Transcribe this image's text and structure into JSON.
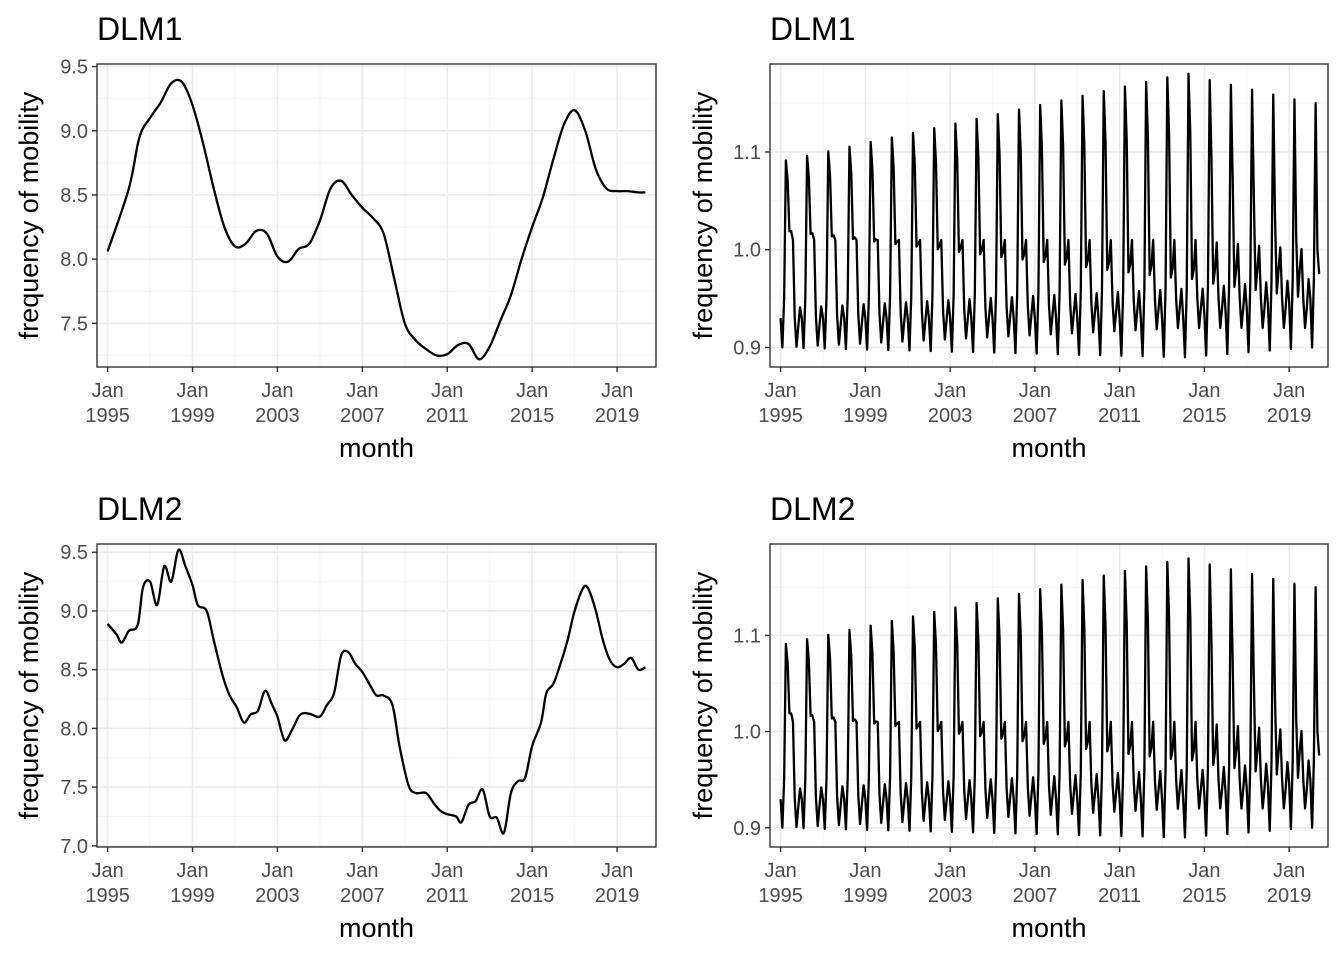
{
  "chart_data": [
    {
      "type": "line",
      "title": "DLM1",
      "xlabel": "month",
      "ylabel": "frequency of mobility",
      "xlim": [
        "1994-07",
        "2020-11"
      ],
      "ylim": [
        7.16,
        9.52
      ],
      "yticks": [
        7.5,
        8.0,
        8.5,
        9.0,
        9.5
      ],
      "ytick_labels": [
        "7.5",
        "8.0",
        "8.5",
        "9.0",
        "9.5"
      ],
      "xticks": [
        "1995-01",
        "1999-01",
        "2003-01",
        "2007-01",
        "2011-01",
        "2015-01",
        "2019-01"
      ],
      "xtick_labels": [
        "Jan\n1995",
        "Jan\n1999",
        "Jan\n2003",
        "Jan\n2007",
        "Jan\n2011",
        "Jan\n2015",
        "Jan\n2019"
      ],
      "grid": true,
      "series": [
        {
          "kind": "smooth",
          "x": [
            "1995-01",
            "1996-01",
            "1996-07",
            "1997-01",
            "1997-07",
            "1998-01",
            "1998-07",
            "1999-01",
            "1999-07",
            "2000-01",
            "2000-07",
            "2001-01",
            "2001-07",
            "2002-01",
            "2002-07",
            "2003-01",
            "2003-07",
            "2004-01",
            "2004-07",
            "2005-01",
            "2005-07",
            "2006-01",
            "2006-07",
            "2007-01",
            "2007-07",
            "2008-01",
            "2008-07",
            "2009-01",
            "2009-07",
            "2010-01",
            "2010-07",
            "2011-01",
            "2011-07",
            "2012-01",
            "2012-07",
            "2013-01",
            "2013-07",
            "2014-01",
            "2014-07",
            "2015-01",
            "2015-07",
            "2016-01",
            "2016-07",
            "2017-01",
            "2017-07",
            "2018-01",
            "2018-07",
            "2019-01",
            "2019-07",
            "2020-01",
            "2020-05"
          ],
          "y": [
            8.06,
            8.55,
            8.95,
            9.1,
            9.22,
            9.37,
            9.38,
            9.2,
            8.9,
            8.55,
            8.25,
            8.1,
            8.12,
            8.22,
            8.2,
            8.02,
            7.98,
            8.08,
            8.12,
            8.3,
            8.55,
            8.61,
            8.5,
            8.4,
            8.32,
            8.2,
            7.85,
            7.5,
            7.37,
            7.3,
            7.25,
            7.26,
            7.33,
            7.34,
            7.22,
            7.32,
            7.52,
            7.72,
            8.0,
            8.25,
            8.48,
            8.78,
            9.05,
            9.16,
            9.0,
            8.7,
            8.55,
            8.53,
            8.53,
            8.52,
            8.52
          ]
        }
      ]
    },
    {
      "type": "line",
      "title": "DLM1",
      "xlabel": "month",
      "ylabel": "frequency of mobility",
      "xlim": [
        "1994-07",
        "2020-11"
      ],
      "ylim": [
        0.88,
        1.19
      ],
      "yticks": [
        0.9,
        1.0,
        1.1
      ],
      "ytick_labels": [
        "0.9",
        "1.0",
        "1.1"
      ],
      "xticks": [
        "1995-01",
        "1999-01",
        "2003-01",
        "2007-01",
        "2011-01",
        "2015-01",
        "2019-01"
      ],
      "xtick_labels": [
        "Jan\n1995",
        "Jan\n1999",
        "Jan\n2003",
        "Jan\n2007",
        "Jan\n2011",
        "Jan\n2015",
        "Jan\n2019"
      ],
      "grid": true,
      "series": [
        {
          "kind": "seasonal",
          "x_start": "1995-01",
          "x_end": "2020-06",
          "frequency": "monthly",
          "monthly_factors_1995": [
            0.93,
            0.9,
            0.95,
            1.09,
            1.07,
            1.02,
            1.02,
            1.01,
            0.93,
            0.9,
            0.92,
            0.94
          ],
          "monthly_factors_2014": [
            0.93,
            0.89,
            0.96,
            1.18,
            1.12,
            0.97,
            0.98,
            1.01,
            0.95,
            0.92,
            0.94,
            0.96
          ],
          "monthly_factors_2020": [
            0.95,
            0.9,
            0.97,
            1.15,
            1.0,
            0.95,
            0.98,
            1.0,
            0.95,
            0.92,
            0.94,
            0.97
          ],
          "start_value": 0.93,
          "end_value": 0.975
        }
      ]
    },
    {
      "type": "line",
      "title": "DLM2",
      "xlabel": "month",
      "ylabel": "frequency of mobility",
      "xlim": [
        "1994-07",
        "2020-11"
      ],
      "ylim": [
        6.99,
        9.57
      ],
      "yticks": [
        7.0,
        7.5,
        8.0,
        8.5,
        9.0,
        9.5
      ],
      "ytick_labels": [
        "7.0",
        "7.5",
        "8.0",
        "8.5",
        "9.0",
        "9.5"
      ],
      "xticks": [
        "1995-01",
        "1999-01",
        "2003-01",
        "2007-01",
        "2011-01",
        "2015-01",
        "2019-01"
      ],
      "xtick_labels": [
        "Jan\n1995",
        "Jan\n1999",
        "Jan\n2003",
        "Jan\n2007",
        "Jan\n2011",
        "Jan\n2015",
        "Jan\n2019"
      ],
      "grid": true,
      "series": [
        {
          "kind": "noisy",
          "x": [
            "1995-01",
            "1995-06",
            "1995-09",
            "1996-01",
            "1996-06",
            "1996-09",
            "1997-01",
            "1997-05",
            "1997-09",
            "1998-01",
            "1998-05",
            "1998-09",
            "1999-01",
            "1999-04",
            "1999-09",
            "2000-01",
            "2000-06",
            "2000-10",
            "2001-02",
            "2001-06",
            "2001-10",
            "2002-02",
            "2002-06",
            "2002-10",
            "2003-01",
            "2003-05",
            "2003-09",
            "2004-01",
            "2004-04",
            "2004-08",
            "2005-01",
            "2005-05",
            "2005-09",
            "2006-01",
            "2006-05",
            "2006-09",
            "2007-01",
            "2007-06",
            "2007-09",
            "2008-01",
            "2008-06",
            "2008-10",
            "2009-03",
            "2009-07",
            "2010-01",
            "2010-05",
            "2010-09",
            "2011-01",
            "2011-06",
            "2011-09",
            "2012-01",
            "2012-05",
            "2012-09",
            "2013-01",
            "2013-05",
            "2013-09",
            "2014-01",
            "2014-05",
            "2014-09",
            "2015-01",
            "2015-06",
            "2015-09",
            "2016-01",
            "2016-05",
            "2016-09",
            "2017-01",
            "2017-06",
            "2017-09",
            "2018-01",
            "2018-05",
            "2018-09",
            "2019-01",
            "2019-05",
            "2019-09",
            "2020-01",
            "2020-05"
          ],
          "y": [
            8.89,
            8.8,
            8.73,
            8.83,
            8.88,
            9.2,
            9.25,
            9.05,
            9.38,
            9.25,
            9.52,
            9.38,
            9.22,
            9.05,
            9.0,
            8.75,
            8.45,
            8.28,
            8.18,
            8.05,
            8.12,
            8.15,
            8.32,
            8.2,
            8.1,
            7.9,
            7.98,
            8.1,
            8.13,
            8.12,
            8.1,
            8.2,
            8.3,
            8.62,
            8.65,
            8.55,
            8.48,
            8.35,
            8.28,
            8.28,
            8.2,
            7.85,
            7.52,
            7.45,
            7.45,
            7.37,
            7.3,
            7.27,
            7.25,
            7.2,
            7.35,
            7.38,
            7.48,
            7.25,
            7.24,
            7.11,
            7.45,
            7.55,
            7.58,
            7.85,
            8.05,
            8.3,
            8.38,
            8.55,
            8.75,
            9.0,
            9.2,
            9.18,
            9.0,
            8.75,
            8.58,
            8.52,
            8.55,
            8.6,
            8.5,
            8.52
          ]
        }
      ]
    },
    {
      "type": "line",
      "title": "DLM2",
      "xlabel": "month",
      "ylabel": "frequency of mobility",
      "xlim": [
        "1994-07",
        "2020-11"
      ],
      "ylim": [
        0.88,
        1.195
      ],
      "yticks": [
        0.9,
        1.0,
        1.1
      ],
      "ytick_labels": [
        "0.9",
        "1.0",
        "1.1"
      ],
      "xticks": [
        "1995-01",
        "1999-01",
        "2003-01",
        "2007-01",
        "2011-01",
        "2015-01",
        "2019-01"
      ],
      "xtick_labels": [
        "Jan\n1995",
        "Jan\n1999",
        "Jan\n2003",
        "Jan\n2007",
        "Jan\n2011",
        "Jan\n2015",
        "Jan\n2019"
      ],
      "grid": true,
      "series": [
        {
          "kind": "seasonal",
          "x_start": "1995-01",
          "x_end": "2020-06",
          "frequency": "monthly",
          "monthly_factors_1995": [
            0.93,
            0.9,
            0.95,
            1.09,
            1.07,
            1.02,
            1.02,
            1.01,
            0.93,
            0.9,
            0.92,
            0.94
          ],
          "monthly_factors_2014": [
            0.93,
            0.89,
            0.96,
            1.18,
            1.12,
            0.97,
            0.98,
            1.01,
            0.95,
            0.92,
            0.94,
            0.96
          ],
          "monthly_factors_2020": [
            0.95,
            0.9,
            0.97,
            1.15,
            1.0,
            0.95,
            0.98,
            1.0,
            0.95,
            0.92,
            0.94,
            0.97
          ],
          "start_value": 0.93,
          "end_value": 0.975
        }
      ]
    }
  ]
}
